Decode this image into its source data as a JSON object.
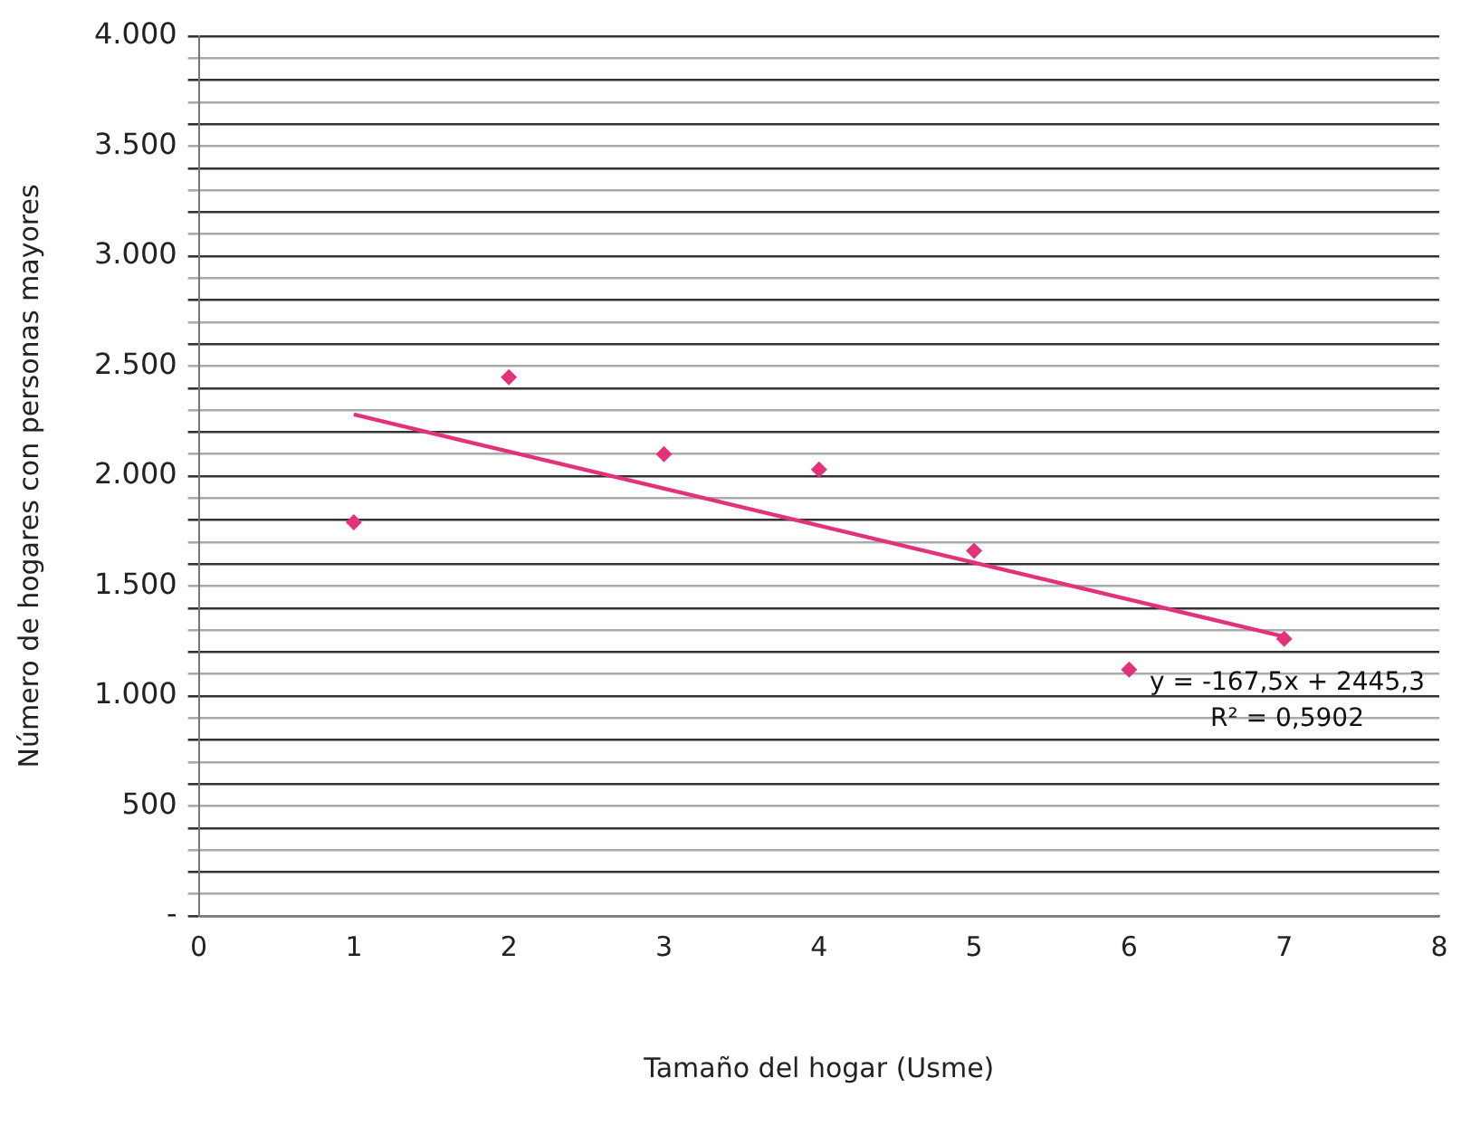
{
  "chart_data": {
    "type": "scatter",
    "xlabel": "Tamaño del hogar (Usme)",
    "ylabel": "Número de hogares con personas mayores",
    "x": [
      1,
      2,
      3,
      4,
      5,
      6,
      7
    ],
    "series": [
      {
        "color": "#e2337a",
        "marker": "diamond",
        "values": [
          1790,
          2450,
          2100,
          2030,
          1660,
          1120,
          1260
        ]
      },
      {
        "type": "line",
        "color": "#e2337a",
        "marker": "none",
        "line_style": "solid",
        "x": [
          1,
          7
        ],
        "values": [
          2280,
          1270
        ]
      }
    ],
    "xlim": [
      0,
      8
    ],
    "xticks": [
      0,
      1,
      2,
      3,
      4,
      5,
      6,
      7,
      8
    ],
    "ylim": [
      0,
      4000
    ],
    "yticks": [
      {
        "value": 0,
        "label": "-"
      },
      {
        "value": 100,
        "label": null
      },
      {
        "value": 200,
        "label": null
      },
      {
        "value": 300,
        "label": null
      },
      {
        "value": 400,
        "label": null
      },
      {
        "value": 500,
        "label": "500"
      },
      {
        "value": 600,
        "label": null
      },
      {
        "value": 700,
        "label": null
      },
      {
        "value": 800,
        "label": null
      },
      {
        "value": 900,
        "label": null
      },
      {
        "value": 1000,
        "label": "1.000"
      },
      {
        "value": 1100,
        "label": null
      },
      {
        "value": 1200,
        "label": null
      },
      {
        "value": 1300,
        "label": null
      },
      {
        "value": 1400,
        "label": null
      },
      {
        "value": 1500,
        "label": "1.500"
      },
      {
        "value": 1600,
        "label": null
      },
      {
        "value": 1700,
        "label": null
      },
      {
        "value": 1800,
        "label": null
      },
      {
        "value": 1900,
        "label": null
      },
      {
        "value": 2000,
        "label": "2.000"
      },
      {
        "value": 2100,
        "label": null
      },
      {
        "value": 2200,
        "label": null
      },
      {
        "value": 2300,
        "label": null
      },
      {
        "value": 2400,
        "label": null
      },
      {
        "value": 2500,
        "label": "2.500"
      },
      {
        "value": 2600,
        "label": null
      },
      {
        "value": 2700,
        "label": null
      },
      {
        "value": 2800,
        "label": null
      },
      {
        "value": 2900,
        "label": null
      },
      {
        "value": 3000,
        "label": "3.000"
      },
      {
        "value": 3100,
        "label": null
      },
      {
        "value": 3200,
        "label": null
      },
      {
        "value": 3300,
        "label": null
      },
      {
        "value": 3400,
        "label": null
      },
      {
        "value": 3500,
        "label": "3.500"
      },
      {
        "value": 3600,
        "label": null
      },
      {
        "value": 3700,
        "label": null
      },
      {
        "value": 3800,
        "label": null
      },
      {
        "value": 3900,
        "label": null
      },
      {
        "value": 4000,
        "label": "4.000"
      }
    ],
    "grid": "y",
    "legend": false,
    "annotations": [
      "y = -167,5x + 2445,3",
      "R² = 0,5902"
    ]
  }
}
